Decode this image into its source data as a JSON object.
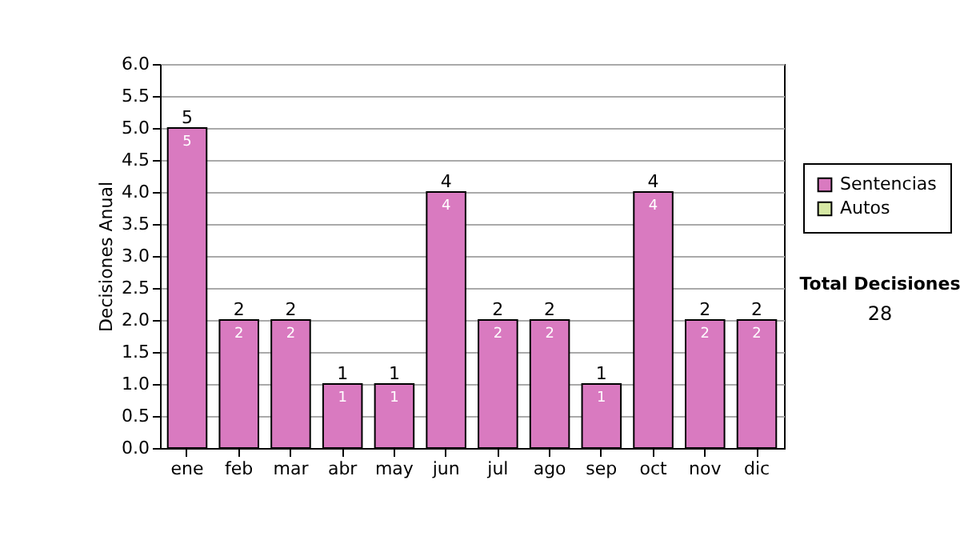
{
  "chart_data": {
    "type": "bar",
    "stacked": true,
    "ylabel": "Decisiones Anual",
    "categories": [
      "ene",
      "feb",
      "mar",
      "abr",
      "may",
      "jun",
      "jul",
      "ago",
      "sep",
      "oct",
      "nov",
      "dic"
    ],
    "series": [
      {
        "name": "Sentencias",
        "color": "#d97ac0",
        "values": [
          5,
          2,
          2,
          1,
          1,
          4,
          2,
          2,
          1,
          4,
          2,
          2
        ],
        "value_labels": [
          "5",
          "2",
          "2",
          "1",
          "1",
          "4",
          "2",
          "2",
          "1",
          "4",
          "2",
          "2"
        ]
      },
      {
        "name": "Autos",
        "color": "#d6e8a4",
        "values": [
          null,
          null,
          null,
          null,
          null,
          null,
          null,
          null,
          null,
          null,
          null,
          null
        ]
      }
    ],
    "totals": [
      "5",
      "2",
      "2",
      "1",
      "1",
      "4",
      "2",
      "2",
      "1",
      "4",
      "2",
      "2"
    ],
    "ylim": [
      0,
      6
    ],
    "yticks": [
      {
        "value": 0,
        "label": "0.0"
      },
      0.5,
      {
        "value": 1,
        "label": "1.0"
      },
      1.5,
      {
        "value": 2,
        "label": "2.0"
      },
      2.5,
      {
        "value": 3,
        "label": "3.0"
      },
      3.5,
      {
        "value": 4,
        "label": "4.0"
      },
      4.5,
      {
        "value": 5,
        "label": "5.0"
      },
      5.5,
      {
        "value": 6,
        "label": "6.0"
      }
    ],
    "grid": "y",
    "legend": "right",
    "annotations": [
      "Total Decisiones",
      "28"
    ]
  }
}
